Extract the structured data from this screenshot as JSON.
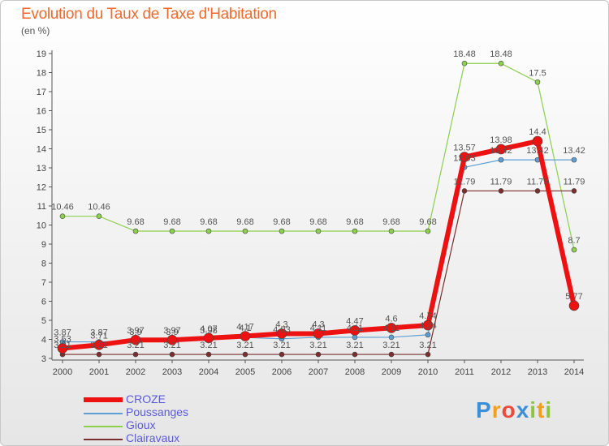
{
  "header": {
    "title": "Evolution du Taux de Taxe d'Habitation",
    "unit": "(en %)"
  },
  "chart_data": {
    "type": "line",
    "x": [
      "2000",
      "2001",
      "2002",
      "2003",
      "2004",
      "2005",
      "2006",
      "2007",
      "2008",
      "2009",
      "2010",
      "2011",
      "2012",
      "2013",
      "2014"
    ],
    "ylim": [
      3,
      19
    ],
    "yticks": [
      3,
      4,
      5,
      6,
      7,
      8,
      9,
      10,
      11,
      12,
      13,
      14,
      15,
      16,
      17,
      18,
      19
    ],
    "grid": false,
    "legend_position": "bottom-left",
    "series": [
      {
        "name": "Gioux",
        "color": "#8cd04c",
        "width": 1.2,
        "marker": 3,
        "values": [
          10.46,
          10.46,
          9.68,
          9.68,
          9.68,
          9.68,
          9.68,
          9.68,
          9.68,
          9.68,
          9.68,
          18.48,
          18.48,
          17.5,
          8.7
        ]
      },
      {
        "name": "Poussanges",
        "color": "#5d9fd3",
        "width": 1.2,
        "marker": 3,
        "values": [
          3.87,
          3.87,
          3.9,
          3.9,
          3.98,
          4.1,
          4.03,
          4.11,
          4.11,
          4.11,
          4.24,
          13.03,
          13.42,
          13.42,
          13.42
        ],
        "labels": [
          "3.87",
          "3.87",
          "3.9",
          "3.9",
          "3.98",
          "4.1",
          "4.03",
          "4.11",
          "4.11",
          "4.11",
          "4.24",
          "13.03",
          "13.42",
          "13.42",
          "13.42"
        ]
      },
      {
        "name": "Clairavaux",
        "color": "#7a2e2e",
        "width": 1.2,
        "marker": 3,
        "values": [
          3.21,
          3.21,
          3.21,
          3.21,
          3.21,
          3.21,
          3.21,
          3.21,
          3.21,
          3.21,
          3.21,
          11.79,
          11.79,
          11.79,
          11.79
        ]
      },
      {
        "name": "CROZE",
        "color": "#ee1111",
        "width": 6,
        "marker": 6,
        "values": [
          3.53,
          3.71,
          3.97,
          3.97,
          4.07,
          4.17,
          4.3,
          4.3,
          4.47,
          4.6,
          4.74,
          13.57,
          13.98,
          14.4,
          5.77
        ],
        "labels": [
          "3.53",
          "3.71",
          "3.97",
          "3.97",
          "4.07",
          "4.17",
          "4.3",
          "4.3",
          "4.47",
          "4.6",
          "4.74",
          "13.57",
          "13.98",
          "14.4",
          "5.77"
        ]
      }
    ],
    "legend": [
      "CROZE",
      "Poussanges",
      "Gioux",
      "Clairavaux"
    ]
  },
  "colors": {
    "title": "#ee6a2e",
    "legend_text": "#5b5bd6"
  },
  "brand": {
    "letters": [
      "P",
      "r",
      "o",
      "x",
      "i",
      "t",
      "i"
    ]
  }
}
